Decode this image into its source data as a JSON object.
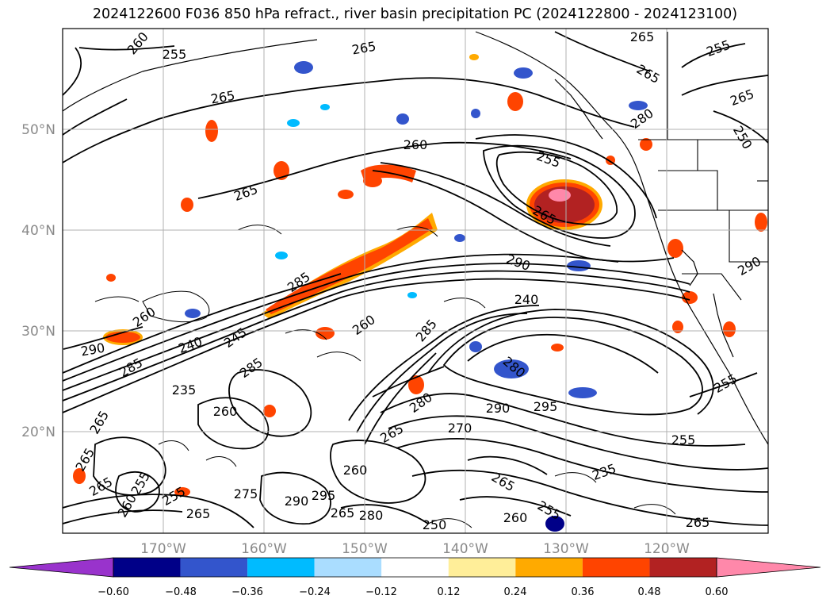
{
  "title": "2024122600 F036 850 hPa refract., river basin precipitation PC (2024122800 - 2024123100)",
  "map": {
    "lat_labels": [
      "50°N",
      "40°N",
      "30°N",
      "20°N"
    ],
    "lon_labels": [
      "170°W",
      "160°W",
      "150°W",
      "140°W",
      "130°W",
      "120°W"
    ],
    "contour_labels": [
      "260",
      "255",
      "265",
      "265",
      "255",
      "265",
      "265",
      "265",
      "260",
      "255",
      "280",
      "250",
      "265",
      "265",
      "290",
      "240",
      "285",
      "260",
      "245",
      "285",
      "260",
      "240",
      "290",
      "285",
      "285",
      "280",
      "295",
      "290",
      "235",
      "260",
      "280",
      "270",
      "255",
      "235",
      "265",
      "255",
      "260",
      "275",
      "290",
      "295"
    ]
  },
  "colorbar": {
    "ticks": [
      "−0.60",
      "−0.48",
      "−0.36",
      "−0.24",
      "−0.12",
      "0.12",
      "0.24",
      "0.36",
      "0.48",
      "0.60"
    ],
    "colors": [
      "#9933cc",
      "#000088",
      "#3355cc",
      "#00bbff",
      "#aaddff",
      "#ffffff",
      "#ffee99",
      "#ffaa00",
      "#ff4400",
      "#b22222",
      "#ff88aa"
    ]
  }
}
